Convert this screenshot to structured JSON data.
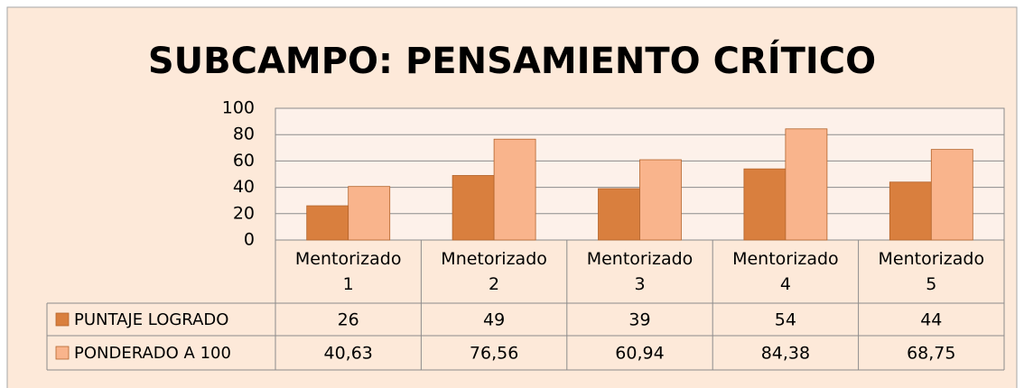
{
  "chart_data": {
    "type": "bar",
    "title": "SUBCAMPO: PENSAMIENTO CRÍTICO",
    "categories": [
      "Mentorizado 1",
      "Mnetorizado 2",
      "Mentorizado 3",
      "Mentorizado 4",
      "Mentorizado 5"
    ],
    "series": [
      {
        "name": "PUNTAJE LOGRADO",
        "color": "#d97f3e",
        "values": [
          26,
          49,
          39,
          54,
          44
        ]
      },
      {
        "name": "PONDERADO A 100",
        "color": "#f9b48c",
        "values": [
          40.63,
          76.56,
          60.94,
          84.38,
          68.75
        ],
        "value_labels": [
          "40,63",
          "76,56",
          "60,94",
          "84,38",
          "68,75"
        ]
      }
    ],
    "ylim": [
      0,
      100
    ],
    "yticks": [
      0,
      20,
      40,
      60,
      80,
      100
    ],
    "grid": true
  }
}
